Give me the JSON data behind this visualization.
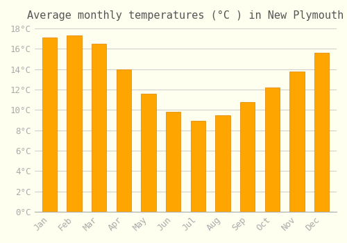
{
  "title": "Average monthly temperatures (°C ) in New Plymouth",
  "months": [
    "Jan",
    "Feb",
    "Mar",
    "Apr",
    "May",
    "Jun",
    "Jul",
    "Aug",
    "Sep",
    "Oct",
    "Nov",
    "Dec"
  ],
  "temperatures": [
    17.1,
    17.3,
    16.5,
    14.0,
    11.6,
    9.8,
    8.9,
    9.5,
    10.8,
    12.2,
    13.8,
    15.6
  ],
  "bar_color": "#FFA500",
  "bar_edge_color": "#E08000",
  "ylim": [
    0,
    18
  ],
  "yticks": [
    0,
    2,
    4,
    6,
    8,
    10,
    12,
    14,
    16,
    18
  ],
  "ytick_labels": [
    "0°C",
    "2°C",
    "4°C",
    "6°C",
    "8°C",
    "10°C",
    "12°C",
    "14°C",
    "16°C",
    "18°C"
  ],
  "background_color": "#FFFFF0",
  "grid_color": "#CCCCCC",
  "title_fontsize": 11,
  "tick_fontsize": 9,
  "title_color": "#555555",
  "tick_color": "#AAAAAA",
  "bar_width": 0.6
}
